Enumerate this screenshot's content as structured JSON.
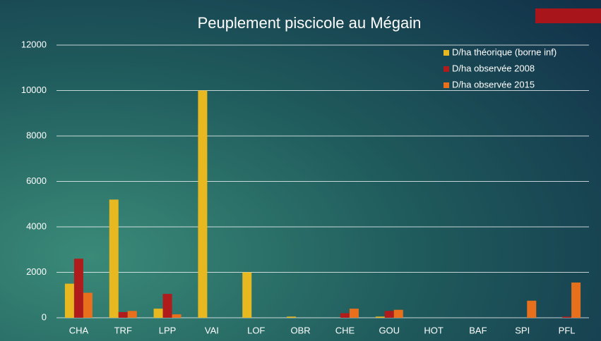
{
  "chart_data": {
    "type": "bar",
    "title": "Peuplement piscicole au Mégain",
    "categories": [
      "CHA",
      "TRF",
      "LPP",
      "VAI",
      "LOF",
      "OBR",
      "CHE",
      "GOU",
      "HOT",
      "BAF",
      "SPI",
      "PFL"
    ],
    "series": [
      {
        "name": "D/ha théorique (borne inf)",
        "color": "#e8b820",
        "values": [
          1500,
          5200,
          400,
          10000,
          2000,
          50,
          0,
          50,
          0,
          0,
          0,
          0
        ]
      },
      {
        "name": "D/ha observée 2008",
        "color": "#b01c1c",
        "values": [
          2600,
          250,
          1050,
          0,
          0,
          0,
          200,
          300,
          0,
          0,
          0,
          50
        ]
      },
      {
        "name": "D/ha observée 2015",
        "color": "#e8701c",
        "values": [
          1100,
          300,
          150,
          0,
          0,
          0,
          400,
          350,
          0,
          0,
          750,
          1550
        ]
      }
    ],
    "ylim": [
      0,
      12000
    ],
    "yticks": [
      0,
      2000,
      4000,
      6000,
      8000,
      10000,
      12000
    ],
    "grid": true,
    "legend": "top-right"
  }
}
